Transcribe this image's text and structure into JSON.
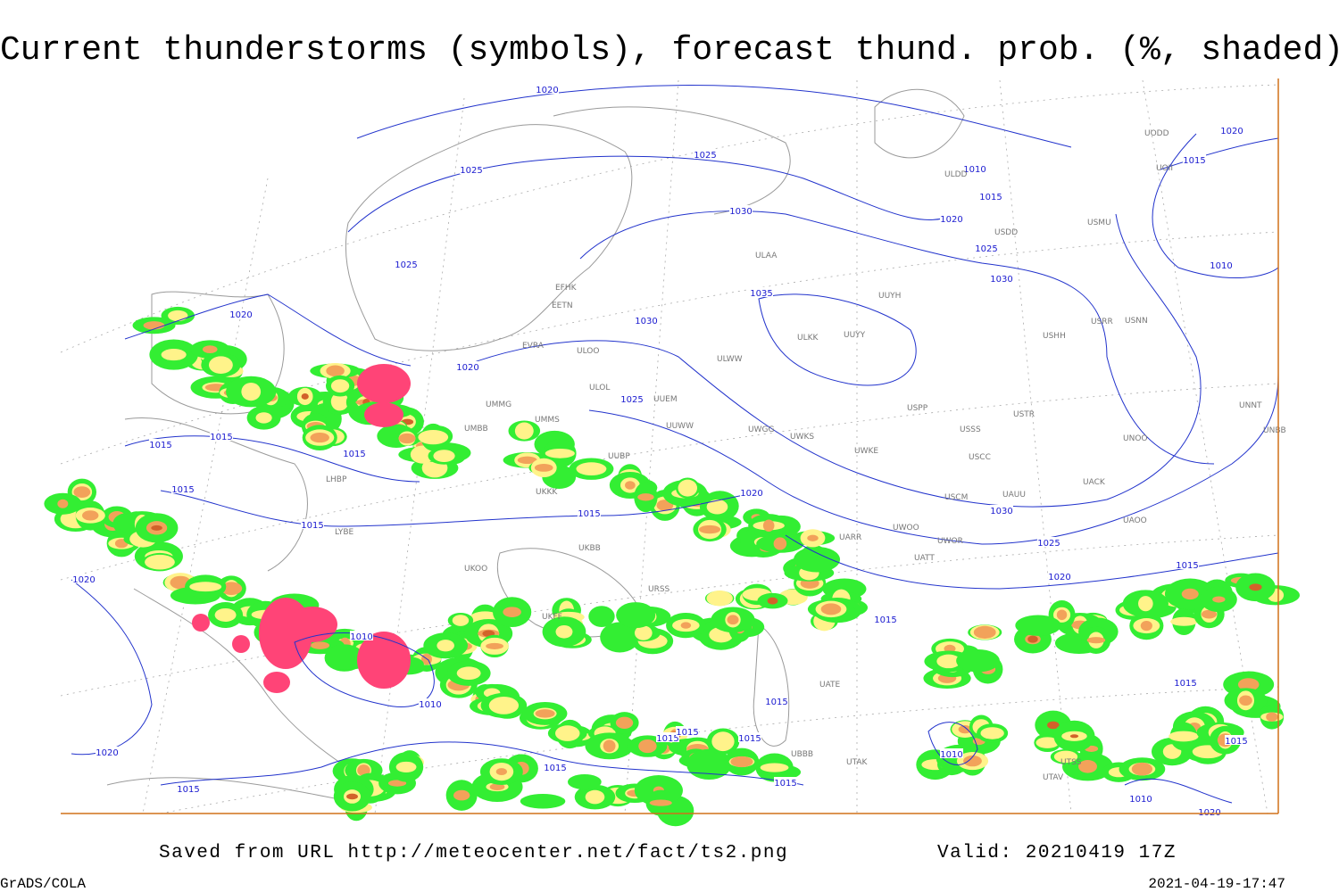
{
  "title": "Current thunderstorms (symbols), forecast thund. prob. (%, shaded)",
  "footer": {
    "source": "Saved from URL http://meteocenter.net/fact/ts2.png",
    "valid": "Valid: 20210419 17Z",
    "software": "GrADS/COLA",
    "timestamp": "2021-04-19-17:47"
  },
  "isobar_labels": [
    "1020",
    "1025",
    "1025",
    "1010",
    "1015",
    "1020",
    "1030",
    "1025",
    "1030",
    "1025",
    "1035",
    "1030",
    "1020",
    "1025",
    "1020",
    "1015",
    "1015",
    "1015",
    "1015",
    "1015",
    "1015",
    "1020",
    "1030",
    "1025",
    "1020",
    "1015",
    "1015",
    "1010",
    "1010",
    "1015",
    "1015",
    "1015",
    "1015",
    "1015",
    "1015",
    "1015",
    "1020",
    "1020",
    "1010",
    "1015",
    "1015",
    "1010",
    "1020",
    "1020",
    "1015",
    "1010"
  ],
  "stations": [
    "ULDD",
    "UUYH",
    "UUYY",
    "ULKK",
    "ULAA",
    "EFHK",
    "EETN",
    "EVRA",
    "ULOO",
    "ULOL",
    "UUEM",
    "UUWW",
    "ULWW",
    "UMMG",
    "UMMS",
    "UMBB",
    "UUBP",
    "USSS",
    "USTR",
    "USCC",
    "UWKE",
    "UWGG",
    "USCM",
    "UAUU",
    "UWOO",
    "UWOR",
    "UATT",
    "UARR",
    "UACK",
    "UAOO",
    "UNOO",
    "UNNT",
    "UNBB",
    "USPP",
    "USHH",
    "USRR",
    "USNN",
    "USMU",
    "UODD",
    "UOII",
    "UKKK",
    "UKOO",
    "UKBB",
    "LYBE",
    "LHBP",
    "UTAK",
    "UTAV",
    "UTSS",
    "UATE",
    "UBBB",
    "URSS",
    "UKFF",
    "UWKS",
    "USDD"
  ]
}
